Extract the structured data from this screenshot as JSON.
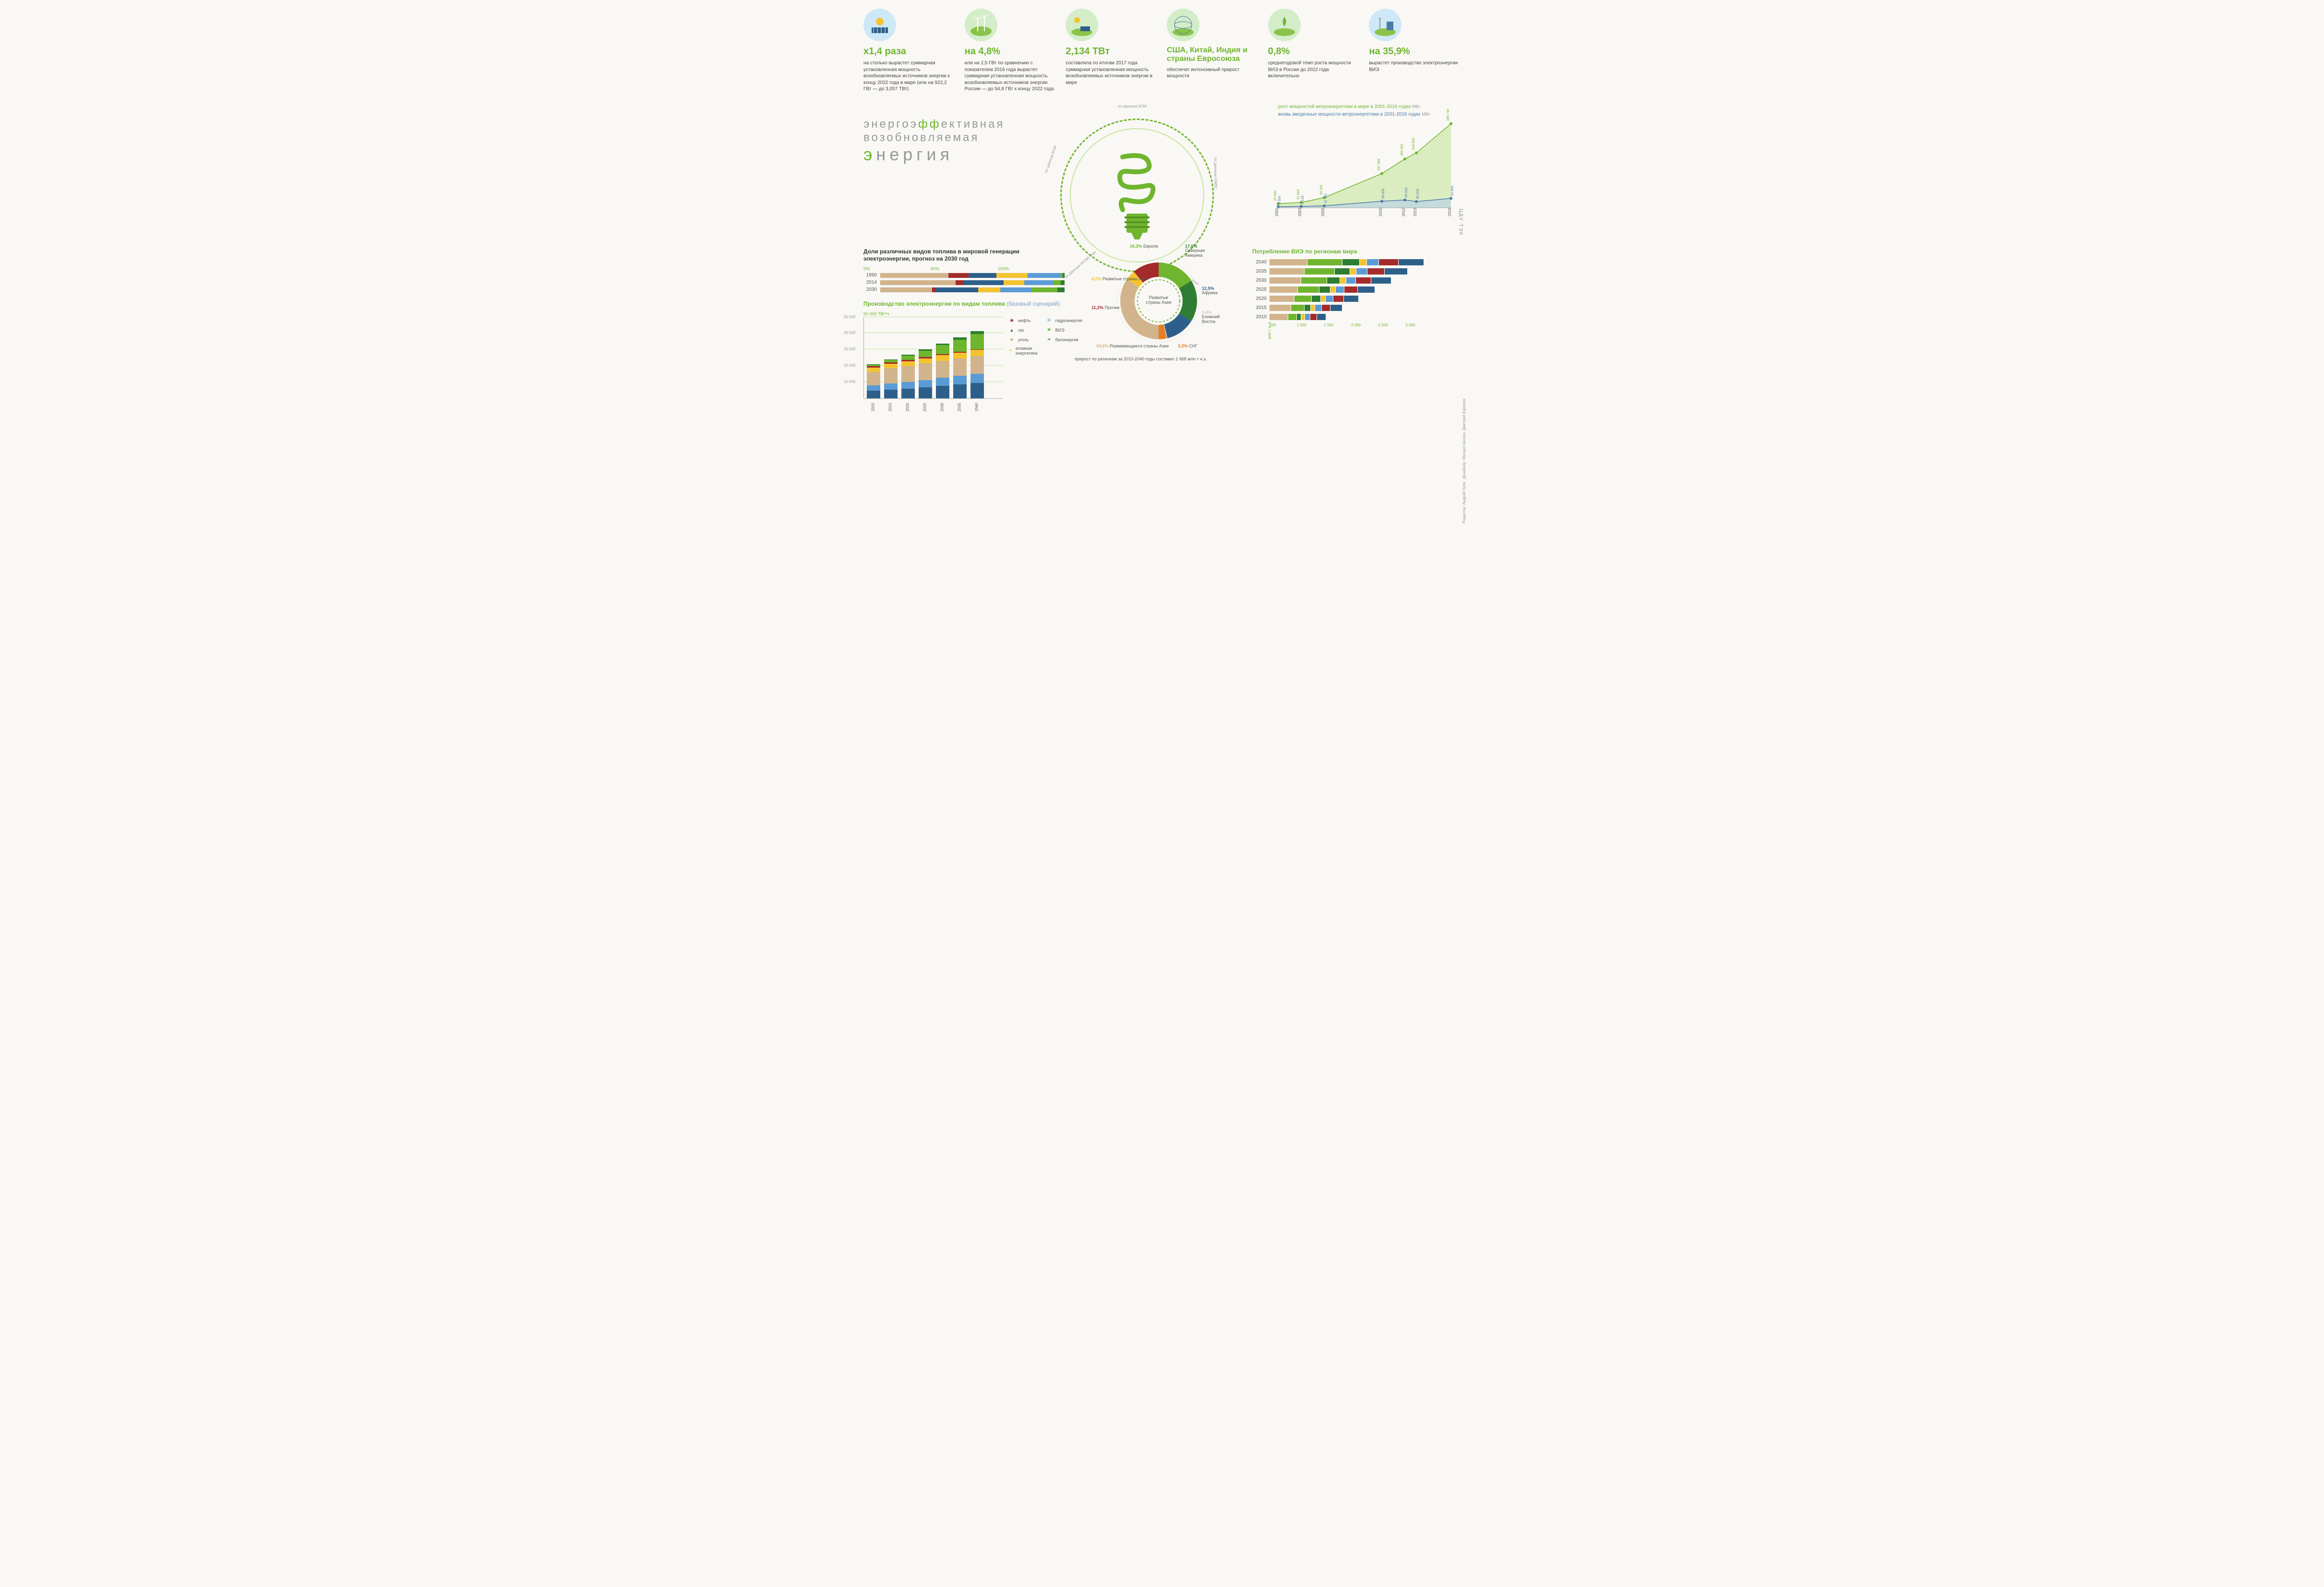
{
  "colors": {
    "accent": "#6fb52e",
    "accent_light": "#c7e59e",
    "blue": "#4a7ba6",
    "bg": "#f9f8f5",
    "text": "#333333",
    "muted": "#999999"
  },
  "fuel_colors": {
    "oil": "#a52a2a",
    "gas": "#2e5f8a",
    "coal": "#d2b48c",
    "nuclear": "#f4c430",
    "hydro": "#5b9bd5",
    "renewables": "#6fb52e",
    "bioenergy": "#2e7d32"
  },
  "top_stats": [
    {
      "big": "x1,4 раза",
      "desc": "на столько вырастет суммарная установленная мощность возобновляемых источников энергии к концу 2022 года в мире (или на 922,2 ГВт — до 3,057 ТВт)",
      "icon_bg": "#cfe8f7"
    },
    {
      "big": "на 4,8%",
      "desc": "или на 2,5 ГВт по сравнению с показателем 2016 года вырастет суммарная установленная мощность возобновляемых источников энергии России — до 54,8 ГВт к концу 2022 года.",
      "icon_bg": "#d4edc9"
    },
    {
      "big": "2,134 ТВт",
      "desc": "составляла по итогам 2017 года суммарная установленная мощность возобновляемых источников энергии в мире",
      "icon_bg": "#d4edc9"
    },
    {
      "big": "США, Китай, Индия и страны Евросоюза",
      "desc": "обеспечат интенсивный прирост мощности",
      "icon_bg": "#d4edc9",
      "special": true
    },
    {
      "big": "0,8%",
      "desc": "среднегодовой темп роста мощности ВИЭ в России до 2022 года включительно",
      "icon_bg": "#d4edc9"
    },
    {
      "big": "на 35,9%",
      "desc": "вырастет производство электроэнергии ВИЭ",
      "icon_bg": "#cfe8f7"
    }
  ],
  "title": {
    "line1": "энергоэффективная",
    "line2": "возобновляемая",
    "line3": "энергия"
  },
  "center_sources": [
    "по данным МЭА",
    "по данным GWEC",
    "по данным ИНЭИ РАН",
    "по данным ИНЭИ РАН",
    "по данным МЭА"
  ],
  "wind_chart": {
    "title_growth": "рост мощностей ветроэнергетики в мире в 2001-2016 годах",
    "title_new": "вновь введенные мощности ветроэнергетики в 2001-2016 годах",
    "unit": "МВт",
    "years": [
      2001,
      2003,
      2005,
      2010,
      2012,
      2013,
      2016
    ],
    "cumulative": [
      23900,
      31000,
      59091,
      197956,
      283000,
      318000,
      486749
    ],
    "annual": [
      6500,
      8133,
      11531,
      38000,
      45030,
      36023,
      54600
    ],
    "annual_peak": {
      "year": 2015,
      "value": 63633
    },
    "ymax": 500000,
    "growth_color": "#c7e59e",
    "growth_line": "#6fb52e",
    "annual_color": "#bcd4e6",
    "annual_line": "#4a7ba6"
  },
  "share_chart": {
    "title": "Доли различных видов топлива в мировой генерации электроэнергии, прогноз на 2030 год",
    "axis": [
      "0%",
      "50%",
      "100%"
    ],
    "rows": [
      {
        "year": "1990",
        "shares": {
          "coal": 37,
          "oil": 11,
          "gas": 15,
          "nuclear": 17,
          "hydro": 18,
          "renewables": 1,
          "bioenergy": 1
        }
      },
      {
        "year": "2014",
        "shares": {
          "coal": 41,
          "oil": 4,
          "gas": 22,
          "nuclear": 11,
          "hydro": 16,
          "renewables": 4,
          "bioenergy": 2
        }
      },
      {
        "year": "2030",
        "shares": {
          "coal": 28,
          "oil": 2,
          "gas": 23,
          "nuclear": 12,
          "hydro": 17,
          "renewables": 14,
          "bioenergy": 4
        }
      }
    ]
  },
  "gen_chart": {
    "title": "Производство электроэнергии по видам топлива",
    "subtitle": "(базовый сценарий)",
    "ylabel": "50 000 ТВт*ч",
    "ymax": 50000,
    "yticks": [
      10000,
      20000,
      30000,
      40000,
      50000
    ],
    "years": [
      2010,
      2015,
      2020,
      2025,
      2030,
      2035,
      2040
    ],
    "stacks": [
      {
        "gas": 4500,
        "hydro": 3300,
        "coal": 8200,
        "nuclear": 2700,
        "oil": 1000,
        "renewables": 700,
        "bioenergy": 300
      },
      {
        "gas": 5200,
        "hydro": 3700,
        "coal": 9500,
        "nuclear": 2500,
        "oil": 900,
        "renewables": 1500,
        "bioenergy": 500
      },
      {
        "gas": 5800,
        "hydro": 4100,
        "coal": 9800,
        "nuclear": 2800,
        "oil": 800,
        "renewables": 2600,
        "bioenergy": 700
      },
      {
        "gas": 6600,
        "hydro": 4500,
        "coal": 10200,
        "nuclear": 3100,
        "oil": 700,
        "renewables": 4000,
        "bioenergy": 900
      },
      {
        "gas": 7500,
        "hydro": 4900,
        "coal": 10400,
        "nuclear": 3400,
        "oil": 600,
        "renewables": 5600,
        "bioenergy": 1100
      },
      {
        "gas": 8400,
        "hydro": 5300,
        "coal": 10500,
        "nuclear": 3700,
        "oil": 500,
        "renewables": 7400,
        "bioenergy": 1300
      },
      {
        "gas": 9300,
        "hydro": 5700,
        "coal": 10600,
        "nuclear": 4000,
        "oil": 400,
        "renewables": 9400,
        "bioenergy": 1500
      }
    ]
  },
  "legend": {
    "oil": "нефть",
    "gas": "газ",
    "coal": "уголь",
    "nuclear": "атомная энергетика",
    "hydro": "гидроэнергия",
    "renewables": "ВИЭ",
    "bioenergy": "биоэнергия"
  },
  "donut": {
    "center_label": "Развитые страны Азии",
    "center_pct": "4,2%",
    "caption": "прирост по регионам за 2010-2040 годы составил 1 668 млн т н.э.",
    "slices": [
      {
        "label": "Европа",
        "pct": 16.2,
        "color": "#6fb52e"
      },
      {
        "label": "Северная Америка",
        "pct": 17.6,
        "color": "#2e7d32"
      },
      {
        "label": "Африка",
        "pct": 12.5,
        "color": "#2e5f8a"
      },
      {
        "label": "Ближний Восток",
        "pct": 0.4,
        "color": "#cccccc"
      },
      {
        "label": "СНГ",
        "pct": 3.3,
        "color": "#e67e22"
      },
      {
        "label": "Развивающиеся страны Азии",
        "pct": 34.6,
        "color": "#d2b48c"
      },
      {
        "label": "Развитые страны Азии",
        "pct": 4.2,
        "color": "#f4c430"
      },
      {
        "label": "Прочие",
        "pct": 11.2,
        "color": "#a52a2a"
      }
    ]
  },
  "region_chart": {
    "title": "Потребление ВИЭ по регионам мира",
    "years": [
      2040,
      2035,
      2030,
      2025,
      2020,
      2015,
      2010
    ],
    "xmax": 3000,
    "xticks": [
      500,
      1000,
      1500,
      2000,
      2500,
      3000
    ],
    "xunit": "млн т н. э.",
    "stacks": [
      {
        "coal": 700,
        "renewables": 640,
        "bioenergy": 320,
        "nuclear": 130,
        "hydro": 220,
        "oil": 360,
        "gas": 470
      },
      {
        "coal": 640,
        "renewables": 560,
        "bioenergy": 280,
        "nuclear": 120,
        "hydro": 200,
        "oil": 320,
        "gas": 420
      },
      {
        "coal": 580,
        "renewables": 480,
        "bioenergy": 240,
        "nuclear": 110,
        "hydro": 180,
        "oil": 280,
        "gas": 370
      },
      {
        "coal": 520,
        "renewables": 400,
        "bioenergy": 200,
        "nuclear": 100,
        "hydro": 160,
        "oil": 240,
        "gas": 320
      },
      {
        "coal": 460,
        "renewables": 320,
        "bioenergy": 160,
        "nuclear": 90,
        "hydro": 140,
        "oil": 200,
        "gas": 270
      },
      {
        "coal": 400,
        "renewables": 240,
        "bioenergy": 120,
        "nuclear": 80,
        "hydro": 120,
        "oil": 160,
        "gas": 220
      },
      {
        "coal": 340,
        "renewables": 160,
        "bioenergy": 80,
        "nuclear": 70,
        "hydro": 100,
        "oil": 120,
        "gas": 170
      }
    ]
  },
  "credits": {
    "editor": "Редактор: Андрей Зуев",
    "designer": "Дизайнер: Михаил Шилин, Дмитрий Королев",
    "logo": "ЦДУ ТЭК"
  }
}
